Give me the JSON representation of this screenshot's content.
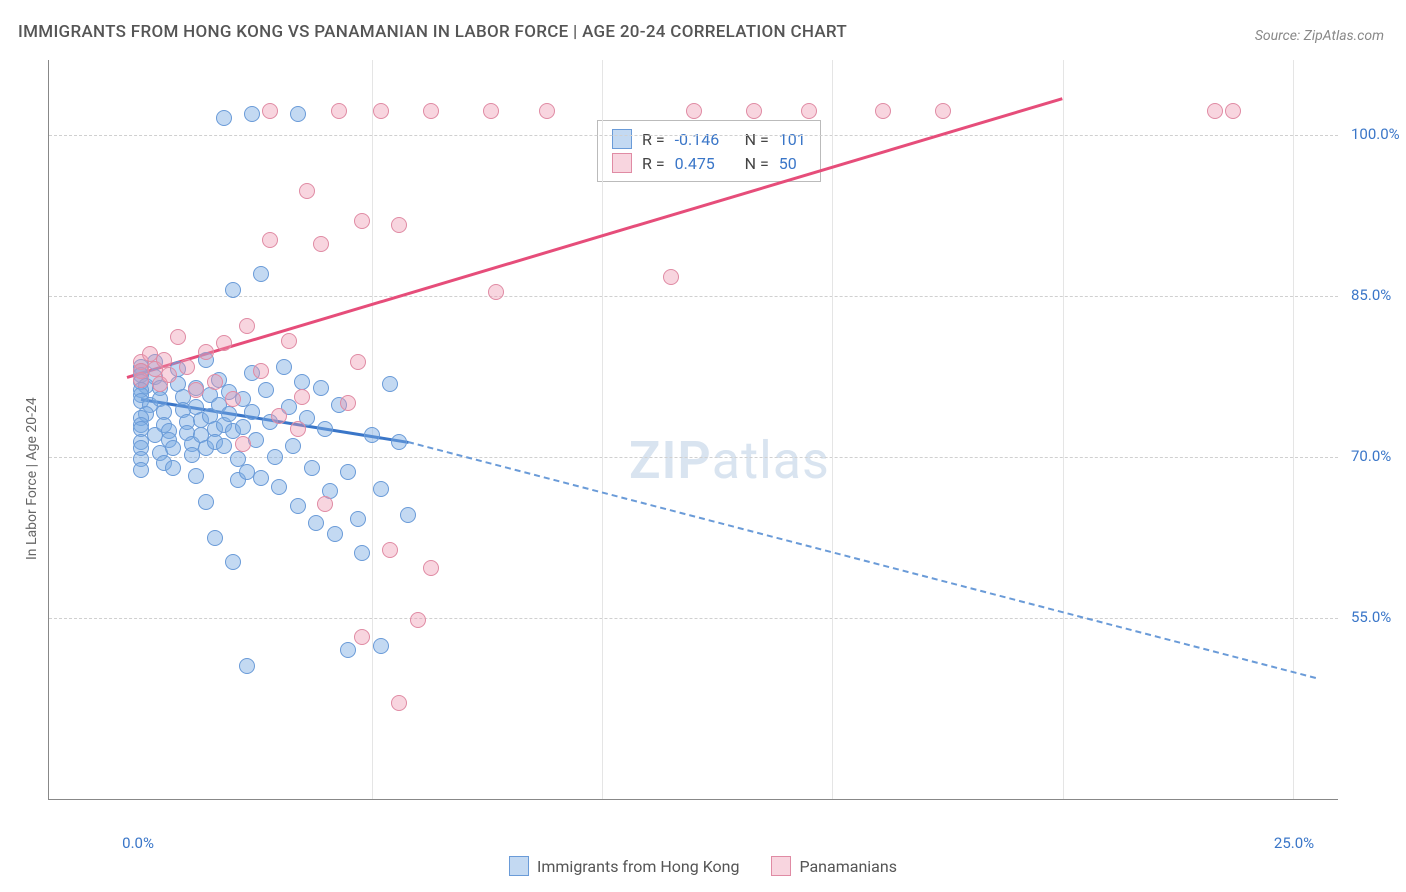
{
  "title": "IMMIGRANTS FROM HONG KONG VS PANAMANIAN IN LABOR FORCE | AGE 20-24 CORRELATION CHART",
  "source": "Source: ZipAtlas.com",
  "y_axis_label": "In Labor Force | Age 20-24",
  "watermark_a": "ZIP",
  "watermark_b": "atlas",
  "chart": {
    "type": "scatter",
    "background_color": "#ffffff",
    "grid_color": "#d0d0d0",
    "axis_color": "#888888",
    "tick_label_color": "#3a76c8",
    "xlim": [
      -2,
      26
    ],
    "ylim": [
      38,
      107
    ],
    "y_ticks": [
      {
        "value": 55.0,
        "label": "55.0%"
      },
      {
        "value": 70.0,
        "label": "70.0%"
      },
      {
        "value": 85.0,
        "label": "85.0%"
      },
      {
        "value": 100.0,
        "label": "100.0%"
      }
    ],
    "x_ticks": [
      {
        "value": 0.0,
        "label": "0.0%"
      },
      {
        "value": 25.0,
        "label": "25.0%"
      }
    ],
    "x_grid_positions": [
      5,
      10,
      15,
      20,
      25
    ],
    "marker_radius": 8,
    "series": [
      {
        "name": "Immigrants from Hong Kong",
        "color_fill": "rgba(122,170,226,0.45)",
        "color_stroke": "#6a9bd8",
        "color_solid": "#6a9bd8",
        "R": "-0.146",
        "N": "101",
        "trend": {
          "x1": 0.0,
          "y1": 75.5,
          "x2": 5.8,
          "y2": 71.5,
          "x_ext": 25.5,
          "y_ext": 49.5,
          "solid_color": "#3a76c8",
          "solid_width": 3,
          "dash_color": "#6a9bd8",
          "dash_width": 2
        },
        "points": [
          [
            0.0,
            78.4
          ],
          [
            0.0,
            78.0
          ],
          [
            0.0,
            77.6
          ],
          [
            0.0,
            77.0
          ],
          [
            0.1,
            76.6
          ],
          [
            0.0,
            76.2
          ],
          [
            0.0,
            75.8
          ],
          [
            0.0,
            75.2
          ],
          [
            0.2,
            74.8
          ],
          [
            0.1,
            74.0
          ],
          [
            0.0,
            73.6
          ],
          [
            0.0,
            73.0
          ],
          [
            0.0,
            72.6
          ],
          [
            0.3,
            72.0
          ],
          [
            0.0,
            71.4
          ],
          [
            0.0,
            70.8
          ],
          [
            0.4,
            70.4
          ],
          [
            0.0,
            69.8
          ],
          [
            0.5,
            69.4
          ],
          [
            0.0,
            68.8
          ],
          [
            0.3,
            78.8
          ],
          [
            0.3,
            77.4
          ],
          [
            0.4,
            76.4
          ],
          [
            0.4,
            75.4
          ],
          [
            0.5,
            74.2
          ],
          [
            0.5,
            73.0
          ],
          [
            0.6,
            72.4
          ],
          [
            0.6,
            71.6
          ],
          [
            0.7,
            70.8
          ],
          [
            0.7,
            69.0
          ],
          [
            0.8,
            78.2
          ],
          [
            0.8,
            76.8
          ],
          [
            0.9,
            75.6
          ],
          [
            0.9,
            74.4
          ],
          [
            1.0,
            73.2
          ],
          [
            1.0,
            72.2
          ],
          [
            1.1,
            71.2
          ],
          [
            1.1,
            70.2
          ],
          [
            1.2,
            76.4
          ],
          [
            1.2,
            74.6
          ],
          [
            1.3,
            73.4
          ],
          [
            1.3,
            72.0
          ],
          [
            1.4,
            70.8
          ],
          [
            1.4,
            79.0
          ],
          [
            1.5,
            75.8
          ],
          [
            1.5,
            73.8
          ],
          [
            1.6,
            72.6
          ],
          [
            1.6,
            71.4
          ],
          [
            1.7,
            77.2
          ],
          [
            1.7,
            74.8
          ],
          [
            1.8,
            73.0
          ],
          [
            1.8,
            71.0
          ],
          [
            1.9,
            76.0
          ],
          [
            1.9,
            74.0
          ],
          [
            2.0,
            72.4
          ],
          [
            2.0,
            85.6
          ],
          [
            2.1,
            69.8
          ],
          [
            2.1,
            67.8
          ],
          [
            2.2,
            75.4
          ],
          [
            2.2,
            72.8
          ],
          [
            2.3,
            68.6
          ],
          [
            2.4,
            77.8
          ],
          [
            2.4,
            74.2
          ],
          [
            2.5,
            71.6
          ],
          [
            2.6,
            68.0
          ],
          [
            2.6,
            87.0
          ],
          [
            2.7,
            76.2
          ],
          [
            2.8,
            73.2
          ],
          [
            2.9,
            70.0
          ],
          [
            3.0,
            67.2
          ],
          [
            3.1,
            78.4
          ],
          [
            3.2,
            74.6
          ],
          [
            3.3,
            71.0
          ],
          [
            3.4,
            65.4
          ],
          [
            3.5,
            77.0
          ],
          [
            3.6,
            73.6
          ],
          [
            3.7,
            69.0
          ],
          [
            3.8,
            63.8
          ],
          [
            3.9,
            76.4
          ],
          [
            4.0,
            72.6
          ],
          [
            4.1,
            66.8
          ],
          [
            4.2,
            62.8
          ],
          [
            4.3,
            74.8
          ],
          [
            4.5,
            68.6
          ],
          [
            4.7,
            64.2
          ],
          [
            5.0,
            72.0
          ],
          [
            5.2,
            67.0
          ],
          [
            5.4,
            76.8
          ],
          [
            5.6,
            71.4
          ],
          [
            5.8,
            64.6
          ],
          [
            1.2,
            68.2
          ],
          [
            1.4,
            65.8
          ],
          [
            1.6,
            62.4
          ],
          [
            4.8,
            61.0
          ],
          [
            2.0,
            60.2
          ],
          [
            5.2,
            52.4
          ],
          [
            2.3,
            50.5
          ],
          [
            4.5,
            52.0
          ],
          [
            1.8,
            101.6
          ],
          [
            2.4,
            102.0
          ],
          [
            3.4,
            102.0
          ]
        ]
      },
      {
        "name": "Panamanians",
        "color_fill": "rgba(238,150,175,0.40)",
        "color_stroke": "#e08ba4",
        "color_solid": "#e86f93",
        "R": "0.475",
        "N": "50",
        "trend": {
          "x1": -0.3,
          "y1": 77.5,
          "x2": 20.0,
          "y2": 103.5,
          "solid_color": "#e64d7a",
          "solid_width": 3
        },
        "points": [
          [
            0.0,
            78.8
          ],
          [
            0.0,
            78.0
          ],
          [
            0.0,
            77.2
          ],
          [
            0.2,
            79.6
          ],
          [
            0.3,
            78.2
          ],
          [
            0.4,
            76.8
          ],
          [
            0.5,
            79.0
          ],
          [
            0.6,
            77.6
          ],
          [
            0.8,
            81.2
          ],
          [
            1.0,
            78.4
          ],
          [
            1.2,
            76.2
          ],
          [
            1.4,
            79.8
          ],
          [
            1.6,
            77.0
          ],
          [
            1.8,
            80.6
          ],
          [
            2.0,
            75.4
          ],
          [
            2.3,
            82.2
          ],
          [
            2.6,
            78.0
          ],
          [
            3.0,
            73.8
          ],
          [
            3.2,
            80.8
          ],
          [
            3.5,
            75.6
          ],
          [
            4.7,
            78.8
          ],
          [
            2.2,
            71.2
          ],
          [
            3.4,
            72.6
          ],
          [
            4.5,
            75.0
          ],
          [
            4.0,
            65.6
          ],
          [
            2.8,
            90.2
          ],
          [
            3.9,
            89.8
          ],
          [
            4.8,
            92.0
          ],
          [
            5.6,
            91.6
          ],
          [
            3.6,
            94.8
          ],
          [
            2.8,
            102.2
          ],
          [
            4.3,
            102.2
          ],
          [
            5.2,
            102.2
          ],
          [
            6.3,
            102.2
          ],
          [
            7.6,
            102.2
          ],
          [
            8.8,
            102.2
          ],
          [
            12.0,
            102.2
          ],
          [
            13.3,
            102.2
          ],
          [
            14.5,
            102.2
          ],
          [
            16.1,
            102.2
          ],
          [
            17.4,
            102.2
          ],
          [
            23.3,
            102.2
          ],
          [
            23.7,
            102.2
          ],
          [
            6.0,
            54.8
          ],
          [
            5.6,
            47.0
          ],
          [
            5.4,
            61.3
          ],
          [
            6.3,
            59.6
          ],
          [
            4.8,
            53.2
          ],
          [
            7.7,
            85.4
          ],
          [
            11.5,
            86.8
          ]
        ]
      }
    ]
  },
  "legend_bottom": [
    {
      "label": "Immigrants from Hong Kong",
      "fill": "rgba(122,170,226,0.45)",
      "stroke": "#6a9bd8"
    },
    {
      "label": "Panamanians",
      "fill": "rgba(238,150,175,0.40)",
      "stroke": "#e08ba4"
    }
  ]
}
